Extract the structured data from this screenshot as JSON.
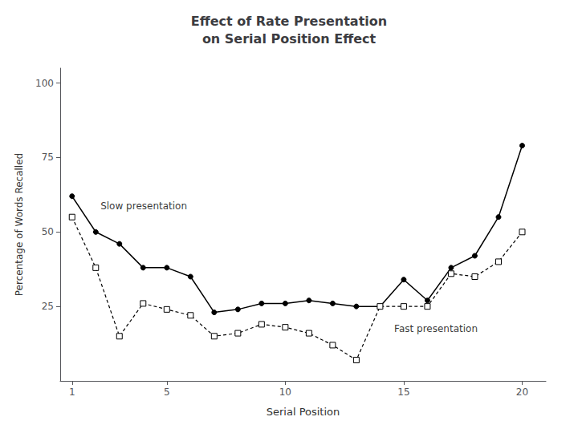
{
  "chart_data": {
    "type": "line",
    "title": "Effect of Rate Presentation\non Serial Position Effect",
    "xlabel": "Serial Position",
    "ylabel": "Percentage of Words Recalled",
    "xlim": [
      0.5,
      21
    ],
    "ylim": [
      0,
      105
    ],
    "xticks": [
      1,
      5,
      10,
      15,
      20
    ],
    "yticks": [
      25,
      50,
      75,
      100
    ],
    "grid": false,
    "series": [
      {
        "x": [
          1,
          2,
          3,
          4,
          5,
          6,
          7,
          8,
          9,
          10,
          11,
          12,
          13,
          14,
          15,
          16,
          17,
          18,
          19,
          20
        ],
        "values": [
          62,
          50,
          46,
          38,
          38,
          35,
          23,
          24,
          26,
          26,
          27,
          26,
          25,
          25,
          34,
          27,
          38,
          42,
          55,
          79
        ],
        "color": "#000000",
        "marker": "circle",
        "line_style": "solid"
      },
      {
        "x": [
          1,
          2,
          3,
          4,
          5,
          6,
          7,
          8,
          9,
          10,
          11,
          12,
          13,
          14,
          15,
          16,
          17,
          18,
          19,
          20
        ],
        "values": [
          55,
          38,
          15,
          26,
          24,
          22,
          15,
          16,
          19,
          18,
          16,
          12,
          7,
          25,
          25,
          25,
          36,
          35,
          40,
          50
        ],
        "color": "#000000",
        "marker": "open_square",
        "line_style": "dashed"
      }
    ],
    "annotations": [
      {
        "text": "Slow presentation",
        "x": 2.2,
        "y": 57
      },
      {
        "text": "Fast presentation",
        "x": 14.6,
        "y": 19
      }
    ]
  }
}
